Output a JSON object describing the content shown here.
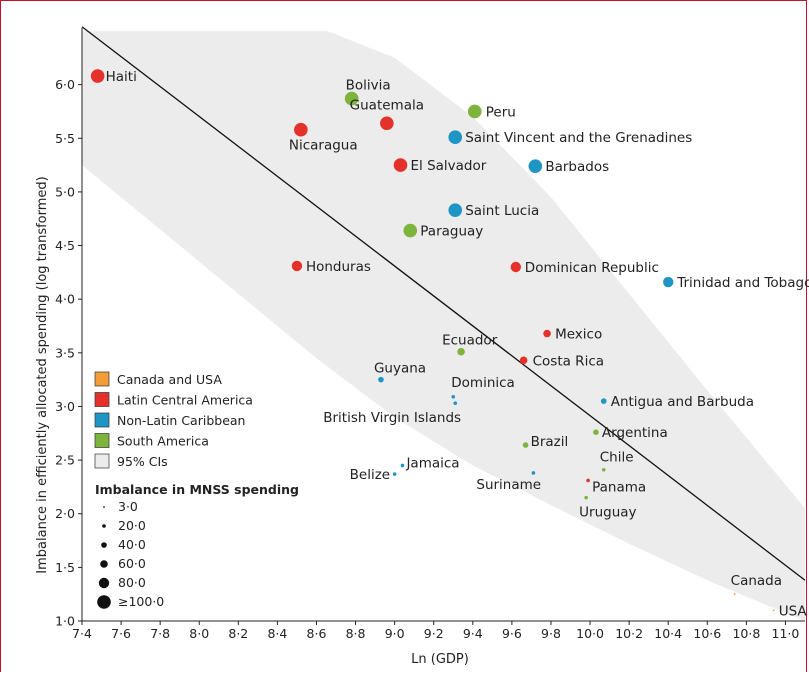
{
  "chart_data": {
    "type": "scatter",
    "title": "",
    "xlabel": "Ln (GDP)",
    "ylabel": "Imbalance in efficiently allocated spending (log transformed)",
    "xlim": [
      7.4,
      11.1
    ],
    "ylim": [
      1.0,
      6.5
    ],
    "x_ticks": [
      "7·4",
      "7·6",
      "7·8",
      "8·0",
      "8·2",
      "8·4",
      "8·6",
      "8·8",
      "9·0",
      "9·2",
      "9·4",
      "9·6",
      "9·8",
      "10·0",
      "10·2",
      "10·4",
      "10·6",
      "10·8",
      "11·0"
    ],
    "y_ticks": [
      "1·0",
      "1·5",
      "2·0",
      "2·5",
      "3·0",
      "3·5",
      "4·0",
      "4·5",
      "5·0",
      "5·5",
      "6·0"
    ],
    "grid": false,
    "legend_placement": "lower-left",
    "groups": [
      {
        "name": "Canada and USA",
        "color": "#f39c3a"
      },
      {
        "name": "Latin Central America",
        "color": "#e4322b"
      },
      {
        "name": "Non-Latin Caribbean",
        "color": "#1f95c6"
      },
      {
        "name": "South America",
        "color": "#7db43b"
      },
      {
        "name": "95% CIs",
        "color": "#ececec"
      }
    ],
    "size_legend_title": "Imbalance in MNSS spending",
    "size_legend": [
      "3·0",
      "20·0",
      "40·0",
      "60·0",
      "80·0",
      "≥100·0"
    ],
    "points": [
      {
        "name": "Haiti",
        "x": 7.48,
        "y": 6.08,
        "group": 1,
        "size": 5
      },
      {
        "name": "Bolivia",
        "x": 8.78,
        "y": 5.87,
        "group": 3,
        "size": 5
      },
      {
        "name": "Peru",
        "x": 9.41,
        "y": 5.75,
        "group": 3,
        "size": 5
      },
      {
        "name": "Guatemala",
        "x": 8.96,
        "y": 5.64,
        "group": 1,
        "size": 5
      },
      {
        "name": "Nicaragua",
        "x": 8.52,
        "y": 5.58,
        "group": 1,
        "size": 5
      },
      {
        "name": "Saint Vincent and the Grenadines",
        "x": 9.31,
        "y": 5.51,
        "group": 2,
        "size": 5
      },
      {
        "name": "El Salvador",
        "x": 9.03,
        "y": 5.25,
        "group": 1,
        "size": 5
      },
      {
        "name": "Barbados",
        "x": 9.72,
        "y": 5.24,
        "group": 2,
        "size": 5
      },
      {
        "name": "Saint Lucia",
        "x": 9.31,
        "y": 4.83,
        "group": 2,
        "size": 5
      },
      {
        "name": "Paraguay",
        "x": 9.08,
        "y": 4.64,
        "group": 3,
        "size": 5
      },
      {
        "name": "Honduras",
        "x": 8.5,
        "y": 4.31,
        "group": 1,
        "size": 4
      },
      {
        "name": "Dominican Republic",
        "x": 9.62,
        "y": 4.3,
        "group": 1,
        "size": 4
      },
      {
        "name": "Trinidad and Tobago",
        "x": 10.4,
        "y": 4.16,
        "group": 2,
        "size": 4
      },
      {
        "name": "Mexico",
        "x": 9.78,
        "y": 3.68,
        "group": 1,
        "size": 3
      },
      {
        "name": "Ecuador",
        "x": 9.34,
        "y": 3.51,
        "group": 3,
        "size": 3
      },
      {
        "name": "Costa Rica",
        "x": 9.66,
        "y": 3.43,
        "group": 1,
        "size": 3
      },
      {
        "name": "Guyana",
        "x": 8.93,
        "y": 3.25,
        "group": 2,
        "size": 2
      },
      {
        "name": "Dominica",
        "x": 9.3,
        "y": 3.09,
        "group": 2,
        "size": 1
      },
      {
        "name": "Antigua and Barbuda",
        "x": 10.07,
        "y": 3.05,
        "group": 2,
        "size": 2
      },
      {
        "name": "British Virgin Islands",
        "x": 9.31,
        "y": 3.03,
        "group": 2,
        "size": 1
      },
      {
        "name": "Argentina",
        "x": 10.03,
        "y": 2.76,
        "group": 3,
        "size": 2
      },
      {
        "name": "Brazil",
        "x": 9.67,
        "y": 2.64,
        "group": 3,
        "size": 2
      },
      {
        "name": "Jamaica",
        "x": 9.04,
        "y": 2.45,
        "group": 2,
        "size": 1
      },
      {
        "name": "Chile",
        "x": 10.07,
        "y": 2.41,
        "group": 3,
        "size": 1
      },
      {
        "name": "Suriname",
        "x": 9.71,
        "y": 2.38,
        "group": 2,
        "size": 1
      },
      {
        "name": "Belize",
        "x": 9.0,
        "y": 2.37,
        "group": 2,
        "size": 1
      },
      {
        "name": "Panama",
        "x": 9.99,
        "y": 2.31,
        "group": 1,
        "size": 1
      },
      {
        "name": "Uruguay",
        "x": 9.98,
        "y": 2.15,
        "group": 3,
        "size": 1
      },
      {
        "name": "Canada",
        "x": 10.74,
        "y": 1.25,
        "group": 0,
        "size": 0
      },
      {
        "name": "USA",
        "x": 10.94,
        "y": 1.1,
        "group": 0,
        "size": 0
      }
    ],
    "fit_line": {
      "x": [
        7.4,
        11.1
      ],
      "y": [
        6.54,
        1.38
      ]
    },
    "ci_band": {
      "upper": {
        "x": [
          7.4,
          8.6,
          9.0,
          9.4,
          9.8,
          10.2,
          10.6,
          11.1
        ],
        "y": [
          6.54,
          6.54,
          6.25,
          5.7,
          4.95,
          4.05,
          3.15,
          2.05
        ]
      },
      "lower": {
        "x": [
          7.4,
          7.8,
          8.2,
          8.6,
          9.0,
          9.4,
          9.8,
          10.2,
          10.6,
          11.1
        ],
        "y": [
          5.25,
          4.65,
          4.05,
          3.45,
          2.9,
          2.45,
          2.08,
          1.72,
          1.38,
          1.0
        ]
      }
    }
  }
}
